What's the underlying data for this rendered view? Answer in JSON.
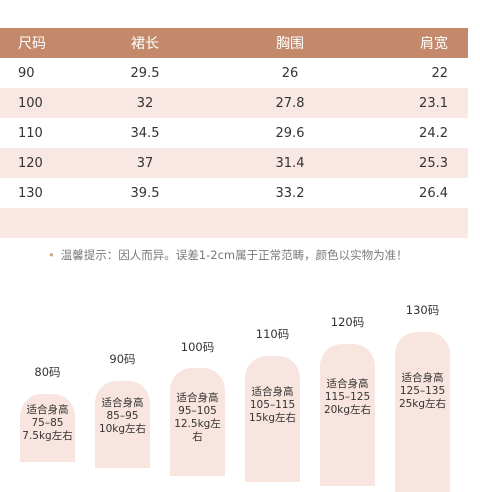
{
  "table": {
    "headers": [
      "尺码",
      "裙长",
      "胸围",
      "肩宽"
    ],
    "rows": [
      [
        "90",
        "29.5",
        "26",
        "22"
      ],
      [
        "100",
        "32",
        "27.8",
        "23.1"
      ],
      [
        "110",
        "34.5",
        "29.6",
        "24.2"
      ],
      [
        "120",
        "37",
        "31.4",
        "25.3"
      ],
      [
        "130",
        "39.5",
        "33.2",
        "26.4"
      ]
    ]
  },
  "tip": {
    "bullet": "•",
    "text": "温馨提示：因人而异。误差1-2cm属于正常范畴，颜色以实物为准！"
  },
  "cards": [
    {
      "size": "80码",
      "line1": "适合身高",
      "line2": "75–85",
      "line3": "7.5kg左右"
    },
    {
      "size": "90码",
      "line1": "适合身高",
      "line2": "85–95",
      "line3": "10kg左右"
    },
    {
      "size": "100码",
      "line1": "适合身高",
      "line2": "95–105",
      "line3": "12.5kg左右"
    },
    {
      "size": "110码",
      "line1": "适合身高",
      "line2": "105–115",
      "line3": "15kg左右"
    },
    {
      "size": "120码",
      "line1": "适合身高",
      "line2": "115–125",
      "line3": "20kg左右"
    },
    {
      "size": "130码",
      "line1": "适合身高",
      "line2": "125–135",
      "line3": "25kg左右"
    }
  ]
}
